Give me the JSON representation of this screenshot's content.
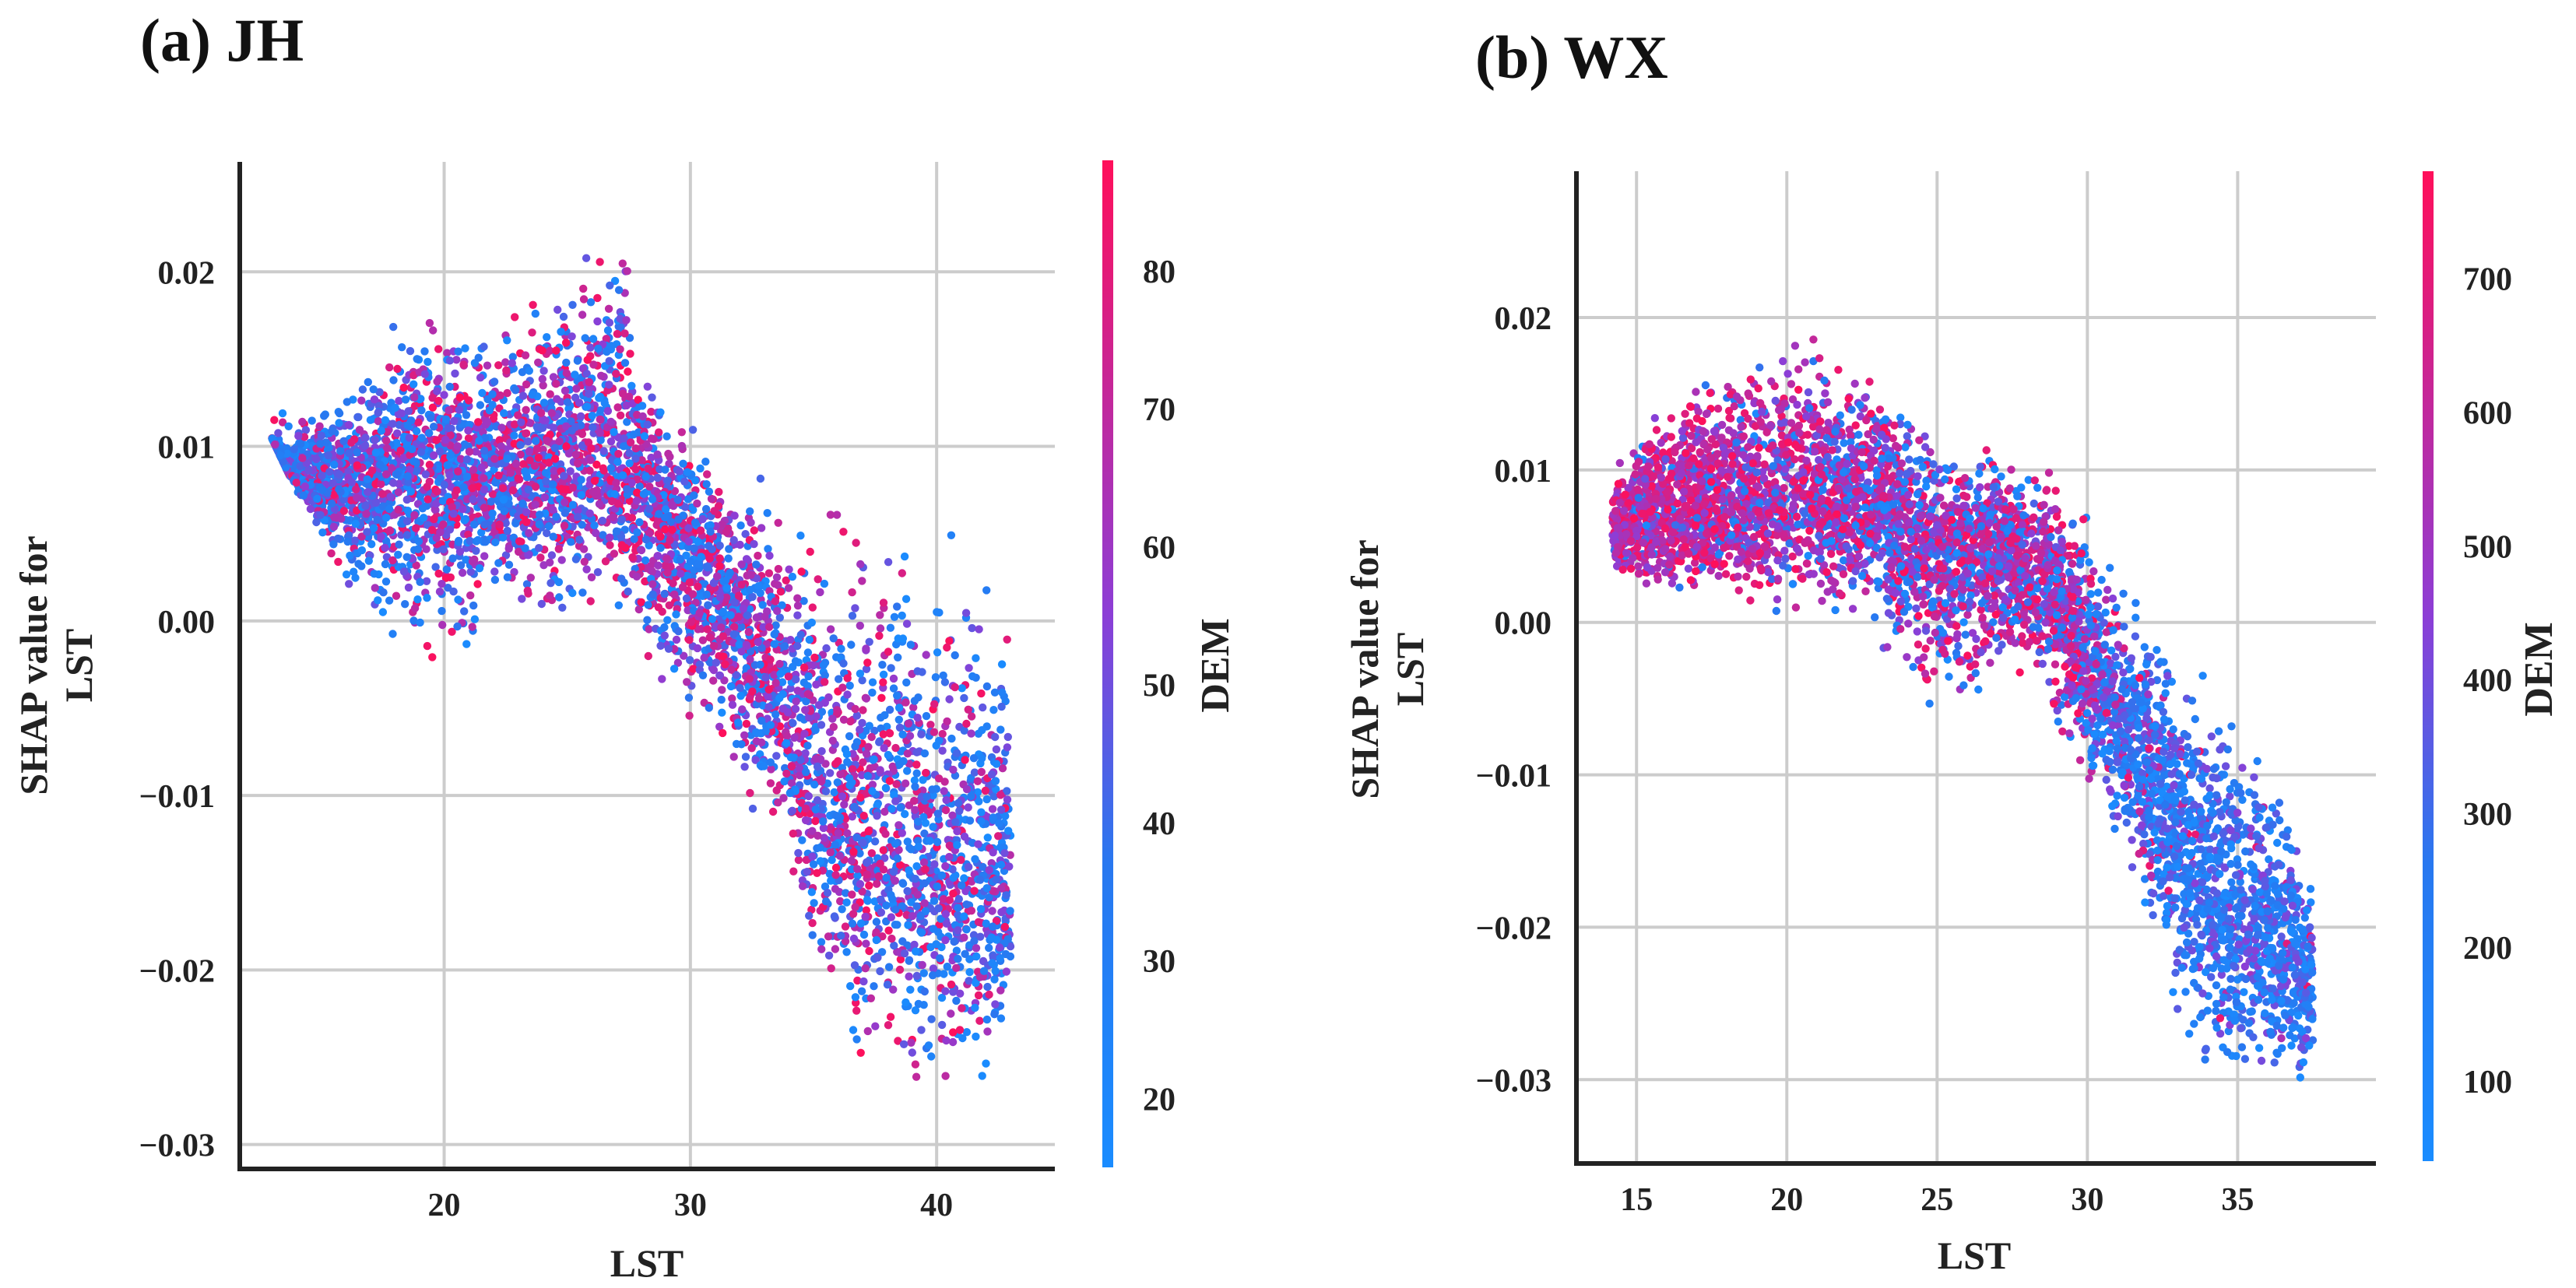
{
  "chart_data": [
    {
      "type": "scatter",
      "panel_title": "(a) JH",
      "xlabel": "LST",
      "ylabel_lines": [
        "SHAP value for",
        "LST"
      ],
      "xlim": [
        11.7,
        44.8
      ],
      "ylim": [
        -0.0314,
        0.0263
      ],
      "xticks": [
        20,
        30,
        40
      ],
      "xtick_labels": [
        "20",
        "30",
        "40"
      ],
      "yticks": [
        0.02,
        0.01,
        0.0,
        -0.01,
        -0.02,
        -0.03
      ],
      "ytick_labels": [
        "0.02",
        "0.01",
        "0.00",
        "−0.01",
        "−0.02",
        "−0.03"
      ],
      "grid": true,
      "colorbar": {
        "label": "DEM",
        "range": [
          15,
          88
        ],
        "ticks": [
          80,
          70,
          60,
          50,
          40,
          30,
          20
        ],
        "tick_labels": [
          "80",
          "70",
          "60",
          "50",
          "40",
          "30",
          "20"
        ],
        "colors": [
          "#1a8cff",
          "#2878f0",
          "#8c3ed6",
          "#ff0f5a"
        ]
      },
      "band": [
        [
          13.0,
          0.0105,
          0.0125
        ],
        [
          14.5,
          0.006,
          0.0125
        ],
        [
          16.0,
          0.001,
          0.0135
        ],
        [
          17.5,
          -0.001,
          0.0165
        ],
        [
          19.5,
          -0.0025,
          0.0185
        ],
        [
          21.0,
          -0.0035,
          0.0175
        ],
        [
          21.5,
          0.0,
          0.0165
        ],
        [
          23.0,
          0.0005,
          0.0175
        ],
        [
          24.5,
          -0.001,
          0.0195
        ],
        [
          26.0,
          -0.0005,
          0.022
        ],
        [
          26.8,
          0.0,
          0.0245
        ],
        [
          27.3,
          -0.002,
          0.0235
        ],
        [
          28.0,
          -0.004,
          0.016
        ],
        [
          29.0,
          -0.005,
          0.0125
        ],
        [
          30.5,
          -0.007,
          0.011
        ],
        [
          31.5,
          -0.0095,
          0.009
        ],
        [
          32.5,
          -0.012,
          0.0085
        ],
        [
          33.0,
          -0.013,
          0.0095
        ],
        [
          34.0,
          -0.015,
          0.006
        ],
        [
          35.0,
          -0.02,
          0.006
        ],
        [
          36.0,
          -0.025,
          0.0075
        ],
        [
          37.0,
          -0.026,
          0.0065
        ],
        [
          38.0,
          -0.027,
          0.0095
        ],
        [
          39.0,
          -0.028,
          0.006
        ],
        [
          40.0,
          -0.029,
          0.008
        ],
        [
          41.0,
          -0.028,
          0.005
        ],
        [
          42.0,
          -0.027,
          0.003
        ],
        [
          43.0,
          -0.025,
          0.001
        ]
      ],
      "trend": [
        [
          13.0,
          0.0085
        ],
        [
          16.0,
          0.0078
        ],
        [
          19.0,
          0.008
        ],
        [
          22.0,
          0.0085
        ],
        [
          25.0,
          0.0092
        ],
        [
          27.0,
          0.0095
        ],
        [
          28.5,
          0.0065
        ],
        [
          30.0,
          0.0035
        ],
        [
          32.0,
          -0.0005
        ],
        [
          34.0,
          -0.006
        ],
        [
          36.0,
          -0.0115
        ],
        [
          38.0,
          -0.013
        ],
        [
          40.0,
          -0.014
        ],
        [
          42.0,
          -0.0145
        ],
        [
          43.0,
          -0.015
        ]
      ],
      "dem_profile": [
        [
          13.0,
          0.2
        ],
        [
          20.0,
          0.4
        ],
        [
          26.0,
          0.55
        ],
        [
          30.0,
          0.5
        ],
        [
          36.0,
          0.5
        ],
        [
          40.0,
          0.35
        ],
        [
          43.0,
          0.2
        ]
      ],
      "n_points": 5200,
      "seed": 1234
    },
    {
      "type": "scatter",
      "panel_title": "(b) WX",
      "xlabel": "LST",
      "ylabel_lines": [
        "SHAP value for",
        "LST"
      ],
      "xlim": [
        13.0,
        39.6
      ],
      "ylim": [
        -0.0355,
        0.0296
      ],
      "xticks": [
        15,
        20,
        25,
        30,
        35
      ],
      "xtick_labels": [
        "15",
        "20",
        "25",
        "30",
        "35"
      ],
      "yticks": [
        0.02,
        0.01,
        0.0,
        -0.01,
        -0.02,
        -0.03
      ],
      "ytick_labels": [
        "0.02",
        "0.01",
        "0.00",
        "−0.01",
        "−0.02",
        "−0.03"
      ],
      "grid": true,
      "colorbar": {
        "label": "DEM",
        "range": [
          40,
          780
        ],
        "ticks": [
          700,
          600,
          500,
          400,
          300,
          200,
          100
        ],
        "tick_labels": [
          "700",
          "600",
          "500",
          "400",
          "300",
          "200",
          "100"
        ],
        "colors": [
          "#1a8cff",
          "#2878f0",
          "#8c3ed6",
          "#ff0f5a"
        ]
      },
      "band": [
        [
          14.2,
          0.0025,
          0.0095
        ],
        [
          15.0,
          0.002,
          0.013
        ],
        [
          17.0,
          0.0015,
          0.0165
        ],
        [
          19.0,
          0.0005,
          0.018
        ],
        [
          20.0,
          0.0,
          0.0205
        ],
        [
          21.0,
          0.0,
          0.019
        ],
        [
          22.5,
          0.0,
          0.0175
        ],
        [
          24.0,
          -0.0035,
          0.0145
        ],
        [
          25.0,
          -0.009,
          0.0125
        ],
        [
          26.0,
          -0.0055,
          0.0115
        ],
        [
          27.5,
          -0.003,
          0.0115
        ],
        [
          28.5,
          -0.005,
          0.0115
        ],
        [
          29.5,
          -0.01,
          0.0085
        ],
        [
          30.5,
          -0.013,
          0.005
        ],
        [
          31.5,
          -0.018,
          0.003
        ],
        [
          32.5,
          -0.025,
          0.0005
        ],
        [
          33.5,
          -0.029,
          -0.002
        ],
        [
          34.5,
          -0.032,
          -0.004
        ],
        [
          35.5,
          -0.031,
          -0.006
        ],
        [
          36.5,
          -0.0305,
          -0.01
        ],
        [
          37.5,
          -0.03,
          -0.017
        ]
      ],
      "trend": [
        [
          14.2,
          0.0065
        ],
        [
          17.0,
          0.0075
        ],
        [
          20.0,
          0.0085
        ],
        [
          23.0,
          0.0075
        ],
        [
          25.0,
          0.0045
        ],
        [
          27.0,
          0.0045
        ],
        [
          28.5,
          0.0035
        ],
        [
          30.0,
          -0.0025
        ],
        [
          31.5,
          -0.008
        ],
        [
          33.0,
          -0.0135
        ],
        [
          34.5,
          -0.018
        ],
        [
          36.0,
          -0.0205
        ],
        [
          37.5,
          -0.0235
        ]
      ],
      "dem_profile": [
        [
          14.2,
          0.88
        ],
        [
          18.0,
          0.82
        ],
        [
          21.0,
          0.72
        ],
        [
          24.0,
          0.5
        ],
        [
          27.0,
          0.6
        ],
        [
          29.0,
          0.62
        ],
        [
          30.0,
          0.48
        ],
        [
          31.0,
          0.22
        ],
        [
          33.0,
          0.08
        ],
        [
          35.0,
          0.04
        ],
        [
          37.5,
          0.03
        ]
      ],
      "n_points": 5200,
      "seed": 98765
    }
  ]
}
